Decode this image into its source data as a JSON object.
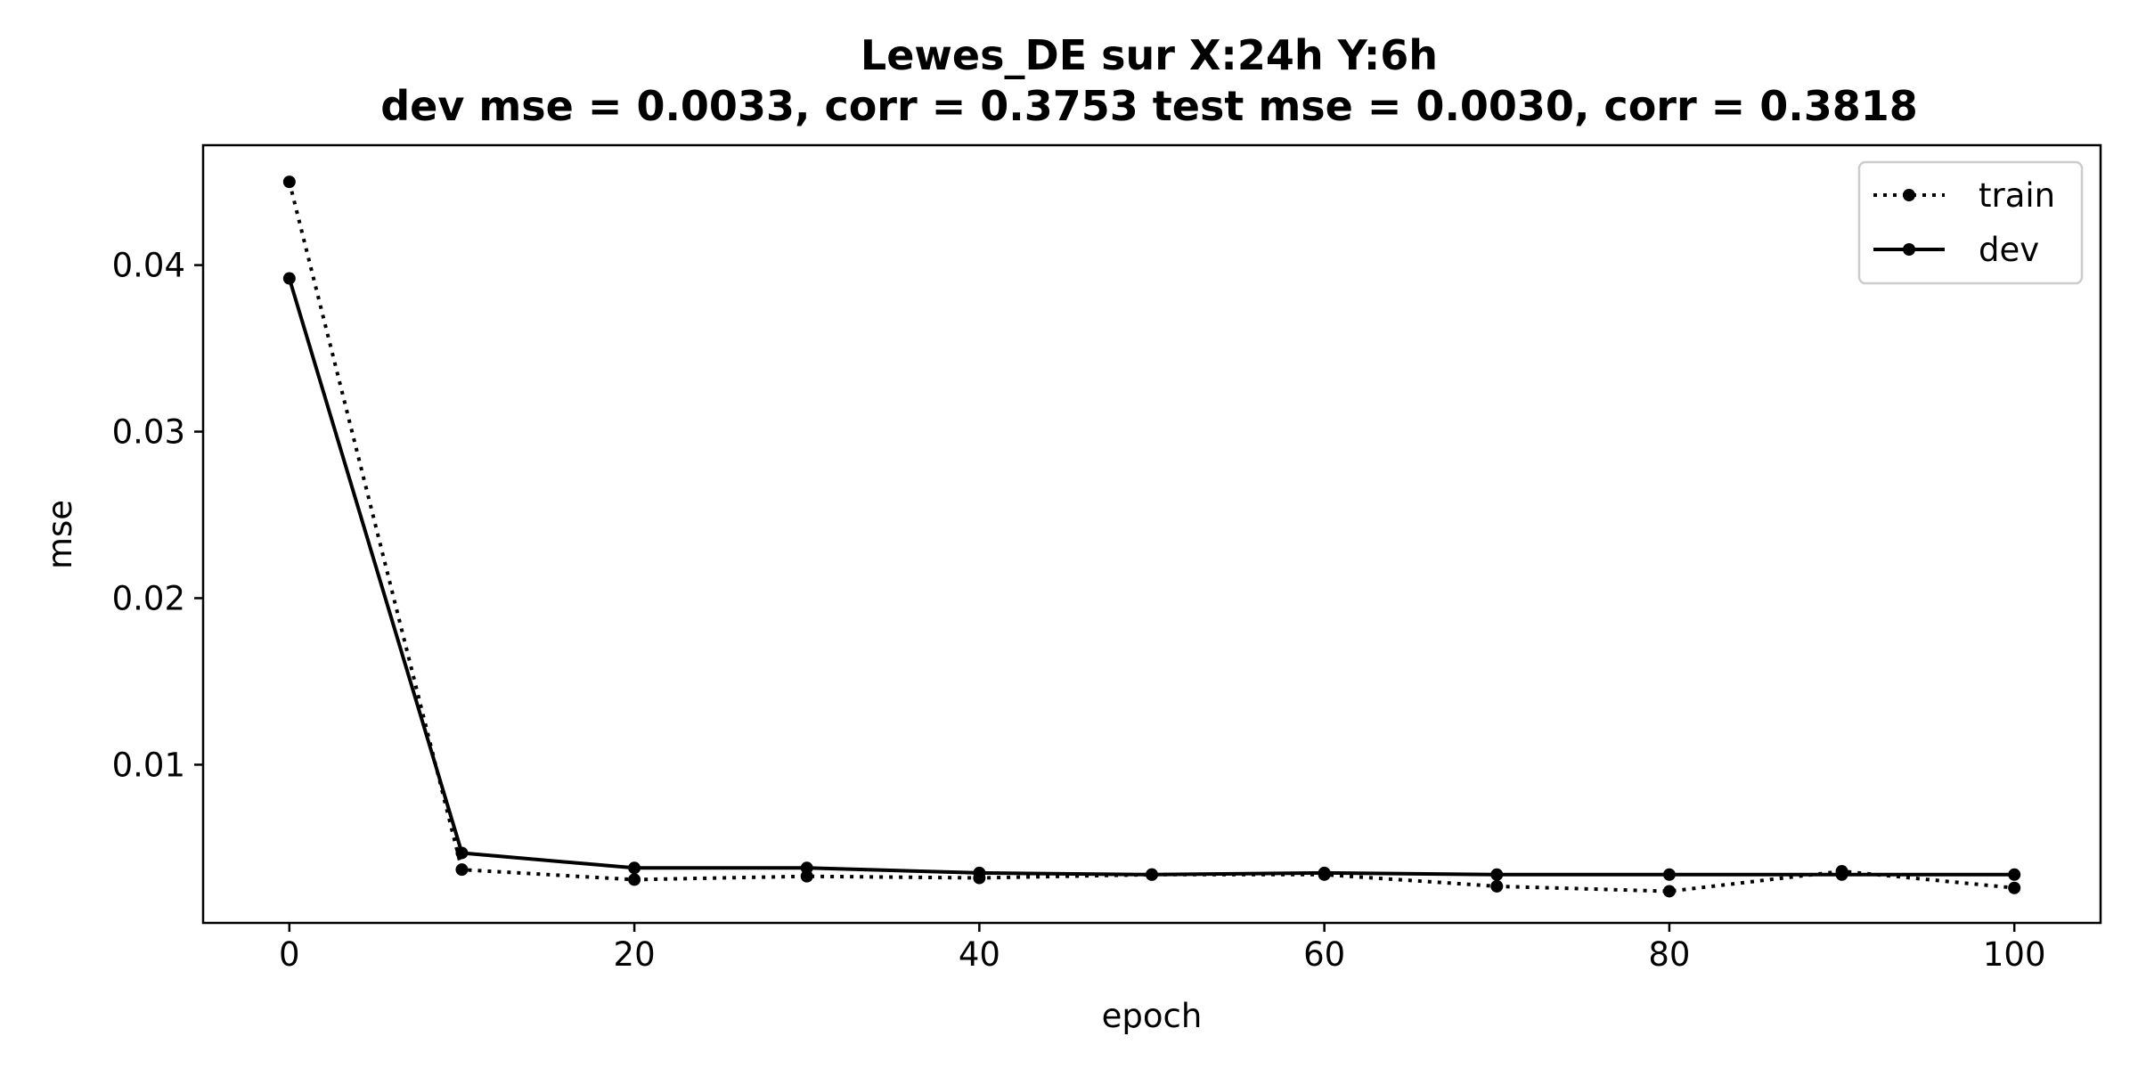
{
  "chart_data": {
    "type": "line",
    "title": "Lewes_DE   sur   X:24h   Y:6h",
    "subtitle": "dev mse = 0.0033, corr = 0.3753   test mse = 0.0030, corr = 0.3818",
    "xlabel": "epoch",
    "ylabel": "mse",
    "xlim": [
      -5,
      105
    ],
    "ylim": [
      0.0005,
      0.0472
    ],
    "x_ticks": [
      0,
      20,
      40,
      60,
      80,
      100
    ],
    "x_tick_labels": [
      "0",
      "20",
      "40",
      "60",
      "80",
      "100"
    ],
    "y_ticks": [
      0.01,
      0.02,
      0.03,
      0.04
    ],
    "y_tick_labels": [
      "0.01",
      "0.02",
      "0.03",
      "0.04"
    ],
    "x": [
      0,
      10,
      20,
      30,
      40,
      50,
      60,
      70,
      80,
      90,
      100
    ],
    "series": [
      {
        "name": "train",
        "line_style": "dotted",
        "marker": "circle",
        "color": "#000000",
        "values": [
          0.045,
          0.0037,
          0.0031,
          0.0033,
          0.0032,
          0.0034,
          0.0034,
          0.0027,
          0.0024,
          0.0036,
          0.0026
        ]
      },
      {
        "name": "dev",
        "line_style": "solid",
        "marker": "circle",
        "color": "#000000",
        "values": [
          0.0392,
          0.0047,
          0.0038,
          0.0038,
          0.0035,
          0.0034,
          0.0035,
          0.0034,
          0.0034,
          0.0034,
          0.0034
        ]
      }
    ],
    "grid": false,
    "legend": {
      "position": "upper right",
      "entries": [
        "train",
        "dev"
      ]
    }
  }
}
